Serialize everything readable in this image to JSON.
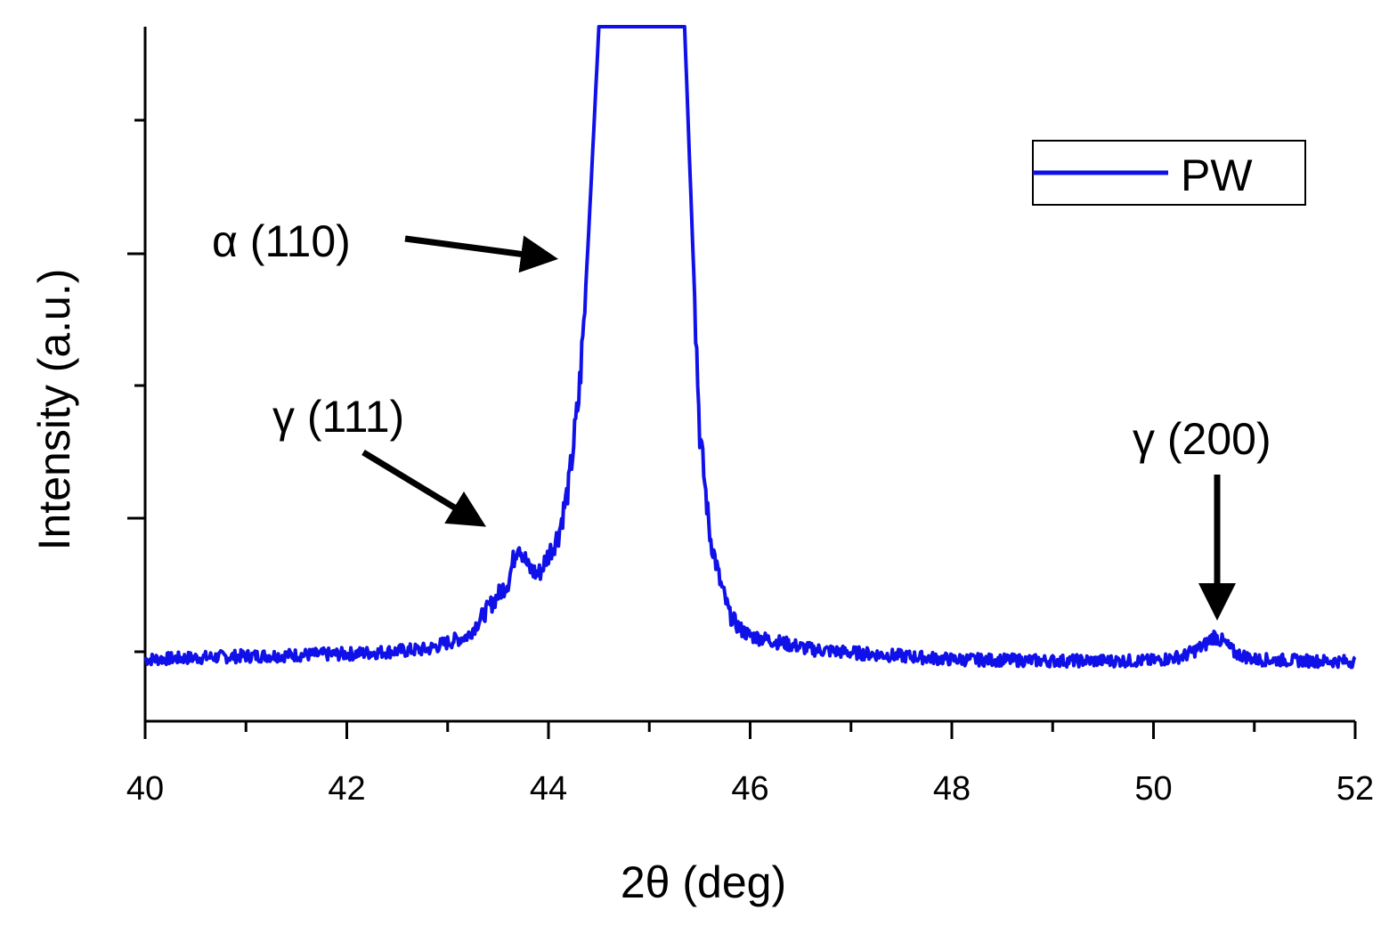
{
  "chart_data": {
    "type": "line",
    "xlabel": "2θ (deg)",
    "ylabel": "Intensity (a.u.)",
    "xlim": [
      40,
      52
    ],
    "ylim": [
      0,
      100
    ],
    "x_ticks": [
      40,
      42,
      44,
      46,
      48,
      50,
      52
    ],
    "y_tick_labels_shown": false,
    "legend": {
      "position": "top-right",
      "entries": [
        "PW"
      ]
    },
    "series": [
      {
        "name": "PW",
        "color": "#1010e8",
        "x": [
          40.0,
          41.0,
          42.0,
          42.8,
          43.2,
          43.4,
          43.6,
          43.7,
          43.8,
          43.9,
          44.0,
          44.1,
          44.2,
          44.3,
          44.35,
          44.4,
          44.45,
          44.5,
          44.55,
          44.6,
          45.3,
          45.35,
          45.4,
          45.45,
          45.5,
          45.6,
          45.7,
          45.8,
          45.9,
          46.0,
          46.3,
          46.6,
          47.0,
          47.5,
          48.0,
          49.0,
          50.0,
          50.3,
          50.5,
          50.6,
          50.7,
          50.8,
          51.0,
          51.5,
          52.0
        ],
        "y": [
          6.5,
          7.0,
          7.3,
          8.0,
          10.0,
          14.0,
          18.0,
          24.0,
          20.0,
          19.0,
          22.0,
          25.0,
          32.0,
          45.0,
          56.0,
          70.0,
          85.0,
          100.0,
          100.0,
          100.0,
          100.0,
          100.0,
          80.0,
          60.0,
          40.0,
          25.0,
          18.0,
          13.0,
          11.0,
          10.0,
          9.0,
          8.0,
          7.5,
          7.0,
          6.5,
          6.3,
          6.3,
          7.0,
          8.5,
          10.0,
          9.0,
          7.5,
          6.5,
          6.3,
          6.2
        ]
      }
    ],
    "annotations": [
      {
        "text": "α (110)",
        "x": 44.3,
        "y": 66.0
      },
      {
        "text": "γ (111)",
        "x": 43.7,
        "y": 26.0
      },
      {
        "text": "γ (200)",
        "x": 50.65,
        "y": 10.0
      }
    ]
  }
}
